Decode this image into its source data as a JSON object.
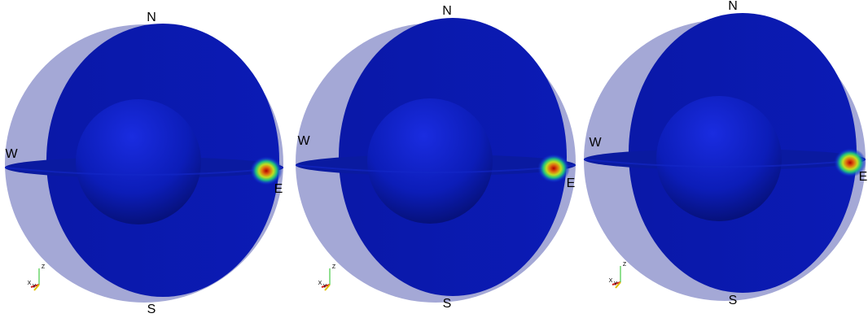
{
  "panels": [
    {
      "north": "N",
      "south": "S",
      "west": "W",
      "east": "E",
      "triad": {
        "z": "Z",
        "x": "X",
        "y": "Y"
      }
    },
    {
      "north": "N",
      "south": "S",
      "west": "W",
      "east": "E",
      "triad": {
        "z": "Z",
        "x": "X",
        "y": "Y"
      }
    },
    {
      "north": "N",
      "south": "S",
      "west": "W",
      "east": "E",
      "triad": {
        "z": "Z",
        "x": "X",
        "y": "Y"
      }
    }
  ]
}
